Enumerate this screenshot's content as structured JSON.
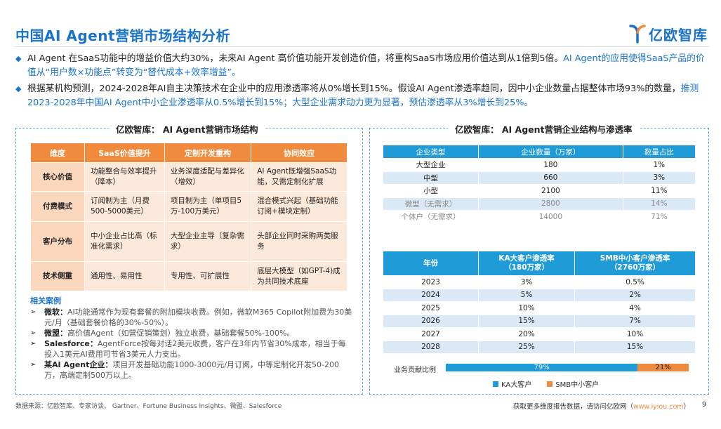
{
  "header": {
    "title": "中国AI Agent营销市场结构分析",
    "logo_text": "亿欧智库",
    "brand_color": "#1a73c8",
    "accent_color": "#f08a3c"
  },
  "bullets": [
    {
      "normal": "AI Agent 在SaaS功能中的增益价值大约30%，未来AI Agent 高价值功能开发创造价值，将重构SaaS市场应用价值达到从1倍到5倍。",
      "highlight": "AI Agent的应用使得SaaS产品的价值从“用户数×功能点”转变为“替代成本+效率增益”。"
    },
    {
      "normal": "根据某机构预测，2024-2028年AI自主决策技术在企业中的应用渗透率将从0%增长到15%。假设AI Agent渗透率趋同，因中小企业数量占据整体市场93%的数量，",
      "highlight": "推测2023-2028年中国AI Agent中小企业渗透率从0.5%增长到15%；大型企业需求动力更为显著，预估渗透率从3%增长到25%。"
    }
  ],
  "left_panel": {
    "title": "亿欧智库： AI Agent营销市场结构",
    "table": {
      "headers": [
        "维度",
        "SaaS价值提升",
        "定制开发重构",
        "协同效应"
      ],
      "rows": [
        [
          "核心价值",
          "功能整合与效率提升（降本）",
          "业务深度适配与差异化（增效）",
          "AI Agent既增强SaaS功能，又需定制化扩展"
        ],
        [
          "付费模式",
          "订阅制为主（月费500-5000美元）",
          "项目制为主（单项目5万-100万美元）",
          "混合模式兴起（基础功能订阅+模块定制）"
        ],
        [
          "客户分布",
          "中小企业占比高（标准化需求）",
          "大型企业主导（复杂需求）",
          "头部企业同时采购两类服务"
        ],
        [
          "技术侧重",
          "通用性、易用性",
          "专用性、可扩展性",
          "底层大模型（如GPT-4)成为共同技术底座"
        ]
      ]
    },
    "cases_heading": "相关案例",
    "cases": [
      {
        "name": "微软：",
        "text": "AI功能通常作为现有套餐的附加模块收费。例如，微软M365 Copilot附加费为30美元/月（基础套餐价格的30%-50%）。"
      },
      {
        "name": "微盟：",
        "text": "高价值Agent（如营促销策划）独立收费，基础套餐50%-100%。"
      },
      {
        "name": "Salesforce：",
        "text": "AgentForce按每对话2美元收费，客户在3年内节省30%成本，相当于每投入1美元AI费用可节省3美元人力支出。"
      },
      {
        "name": "某AI Agent企业：",
        "text": "项目开发基础功能1000-3000元/月订阅，中等定制化开发50-200万，高端定制500万以上。"
      }
    ]
  },
  "right_panel": {
    "title": "亿欧智库： AI Agent营销企业结构与渗透率",
    "enterprise_table": {
      "headers": [
        "企业类型",
        "企业数量（万家）",
        "数量占比"
      ],
      "rows": [
        [
          "大型企业",
          "180",
          "1%"
        ],
        [
          "中型",
          "660",
          "3%"
        ],
        [
          "小型",
          "2100",
          "11%"
        ],
        [
          "微型（无需求）",
          "2800",
          "14%"
        ],
        [
          "个体户（无需求）",
          "14000",
          "71%"
        ]
      ]
    },
    "penetration_table": {
      "headers": [
        "年份",
        "KA大客户渗透率\n（180万家）",
        "SMB中小客户渗透率\n（2760万家）"
      ],
      "rows": [
        [
          "2023",
          "3%",
          "0.5%"
        ],
        [
          "2024",
          "5%",
          "2%"
        ],
        [
          "2025",
          "10%",
          "4%"
        ],
        [
          "2026",
          "15%",
          "7%"
        ],
        [
          "2027",
          "20%",
          "10%"
        ],
        [
          "2028",
          "25%",
          "15%"
        ]
      ]
    },
    "share": {
      "label": "业务贡献比例",
      "segments": [
        {
          "name": "KA大客户",
          "value": 79,
          "display": "79%",
          "color": "#1f9bd7"
        },
        {
          "name": "SMB中小客户",
          "value": 21,
          "display": "21%",
          "color": "#f08a3c"
        }
      ]
    }
  },
  "footer": {
    "source": "数据来源：亿欧智库、专家访谈、 Gartner、Fortune Business Insights、微盟、Salesforce",
    "cta_prefix": "获取更多维度报告数据，请访问亿欧网（",
    "cta_url": "www.iyiou.com",
    "cta_suffix": "）",
    "page": "9"
  }
}
